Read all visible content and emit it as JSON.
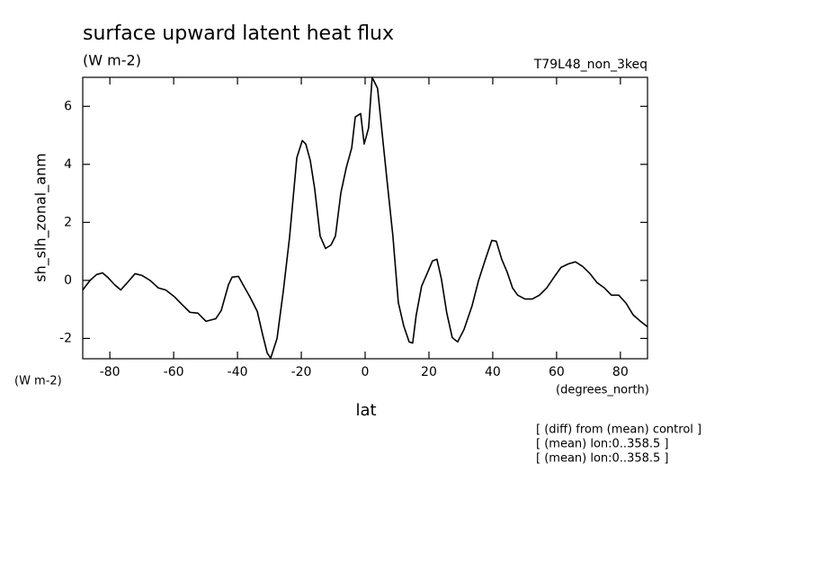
{
  "chart_data": {
    "type": "line",
    "title": "surface upward latent heat flux",
    "subtitle": "(W m-2)",
    "run_label": "T79L48_non_3keq",
    "ylabel": "sh_slh_zonal_anm",
    "xlabel": "lat",
    "y_units": "(W m-2)",
    "x_units": "(degrees_north)",
    "annotations": [
      "[ (diff) from (mean) control ]",
      "[ (mean) lon:0..358.5 ]",
      "[ (mean) lon:0..358.5 ]"
    ],
    "color": "#000000",
    "xlim": [
      -88.5,
      88.5
    ],
    "ylim": [
      -2.7,
      7
    ],
    "xticks": [
      -80,
      -60,
      -40,
      -20,
      0,
      20,
      40,
      60,
      80
    ],
    "yticks": [
      -2,
      0,
      2,
      4,
      6
    ],
    "x": [
      -88.5,
      -86.2,
      -84.2,
      -82.3,
      -80.6,
      -78.6,
      -76.6,
      -74.7,
      -72.1,
      -69.9,
      -67.4,
      -64.8,
      -62.5,
      -59.7,
      -57.5,
      -54.9,
      -52.4,
      -49.9,
      -46.8,
      -45.1,
      -42.8,
      -41.7,
      -39.7,
      -38.0,
      -36.1,
      -33.8,
      -32.1,
      -30.7,
      -29.6,
      -27.6,
      -25.6,
      -23.7,
      -21.4,
      -19.7,
      -18.6,
      -17.2,
      -15.8,
      -14.1,
      -12.4,
      -10.7,
      -9.3,
      -7.6,
      -5.9,
      -4.2,
      -3.1,
      -1.4,
      -0.3,
      1.1,
      2.2,
      3.9,
      5.4,
      7.0,
      8.7,
      10.4,
      12.1,
      13.8,
      14.9,
      16.0,
      17.7,
      19.4,
      21.1,
      22.5,
      23.9,
      25.6,
      27.3,
      29.0,
      31.0,
      33.5,
      35.5,
      37.7,
      39.7,
      41.1,
      42.8,
      44.5,
      46.2,
      47.8,
      50.1,
      52.4,
      54.6,
      56.9,
      59.2,
      61.4,
      63.7,
      65.9,
      68.2,
      70.5,
      72.7,
      75.0,
      77.2,
      79.5,
      81.8,
      84.0,
      86.3,
      88.5
    ],
    "values": [
      -0.33,
      0.0,
      0.2,
      0.26,
      0.1,
      -0.14,
      -0.33,
      -0.1,
      0.23,
      0.17,
      0.0,
      -0.26,
      -0.33,
      -0.57,
      -0.82,
      -1.1,
      -1.13,
      -1.41,
      -1.32,
      -1.04,
      -0.14,
      0.11,
      0.14,
      -0.2,
      -0.57,
      -1.07,
      -1.88,
      -2.5,
      -2.68,
      -2.0,
      -0.33,
      1.47,
      4.23,
      4.82,
      4.7,
      4.14,
      3.15,
      1.53,
      1.1,
      1.22,
      1.53,
      3.02,
      3.89,
      4.57,
      5.63,
      5.75,
      4.7,
      5.26,
      7.0,
      6.62,
      5.0,
      3.3,
      1.53,
      -0.76,
      -1.57,
      -2.12,
      -2.16,
      -1.2,
      -0.2,
      0.23,
      0.67,
      0.73,
      0.05,
      -1.13,
      -1.97,
      -2.12,
      -1.69,
      -0.88,
      -0.02,
      0.73,
      1.38,
      1.35,
      0.73,
      0.29,
      -0.26,
      -0.51,
      -0.64,
      -0.64,
      -0.51,
      -0.26,
      0.11,
      0.45,
      0.57,
      0.64,
      0.48,
      0.23,
      -0.08,
      -0.26,
      -0.51,
      -0.51,
      -0.79,
      -1.19,
      -1.41,
      -1.6
    ]
  }
}
